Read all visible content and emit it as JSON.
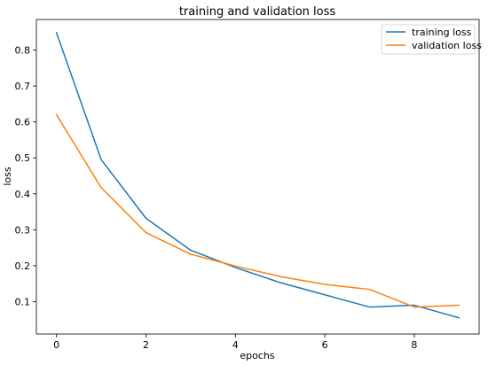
{
  "chart_data": {
    "type": "line",
    "title": "training and validation loss",
    "xlabel": "epochs",
    "ylabel": "loss",
    "xlim": [
      -0.45,
      9.45
    ],
    "ylim": [
      0.01,
      0.885
    ],
    "xticks": [
      0,
      2,
      4,
      6,
      8
    ],
    "yticks": [
      0.1,
      0.2,
      0.3,
      0.4,
      0.5,
      0.6,
      0.7,
      0.8
    ],
    "grid": false,
    "legend_position": "top-right",
    "x": [
      0,
      1,
      2,
      3,
      4,
      5,
      6,
      7,
      8,
      9
    ],
    "series": [
      {
        "name": "training loss",
        "color": "#1f77b4",
        "values": [
          0.848,
          0.495,
          0.332,
          0.243,
          0.195,
          0.153,
          0.119,
          0.085,
          0.09,
          0.055
        ]
      },
      {
        "name": "validation loss",
        "color": "#ff7f0e",
        "values": [
          0.62,
          0.417,
          0.292,
          0.232,
          0.199,
          0.17,
          0.148,
          0.134,
          0.085,
          0.09
        ]
      }
    ]
  }
}
